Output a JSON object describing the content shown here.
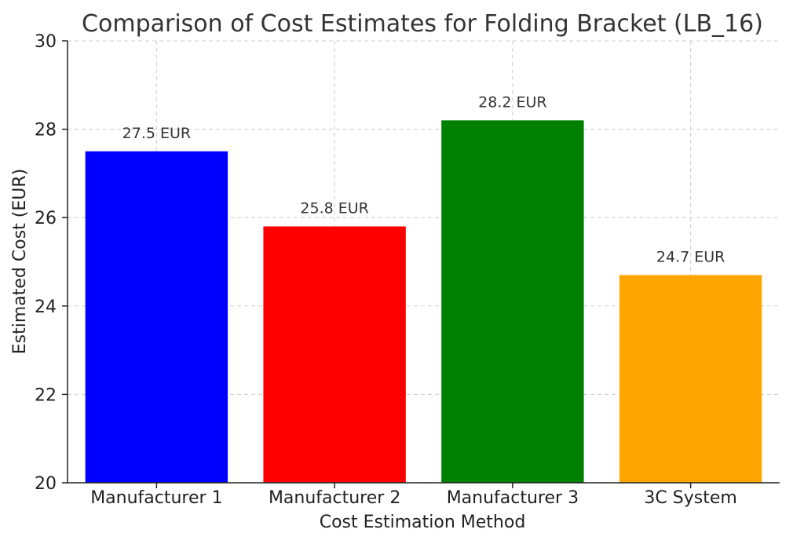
{
  "chart_data": {
    "type": "bar",
    "title": "Comparison of Cost Estimates for Folding Bracket (LB_16)",
    "xlabel": "Cost Estimation Method",
    "ylabel": "Estimated Cost (EUR)",
    "categories": [
      "Manufacturer 1",
      "Manufacturer 2",
      "Manufacturer 3",
      "3C System"
    ],
    "values": [
      27.5,
      25.8,
      28.2,
      24.7
    ],
    "value_labels": [
      "27.5 EUR",
      "25.8 EUR",
      "28.2 EUR",
      "24.7 EUR"
    ],
    "colors": [
      "#0000ff",
      "#ff0000",
      "#008000",
      "#ffa500"
    ],
    "ylim": [
      20,
      30
    ],
    "yticks": [
      20,
      22,
      24,
      26,
      28,
      30
    ],
    "grid": true,
    "legend": "none"
  }
}
